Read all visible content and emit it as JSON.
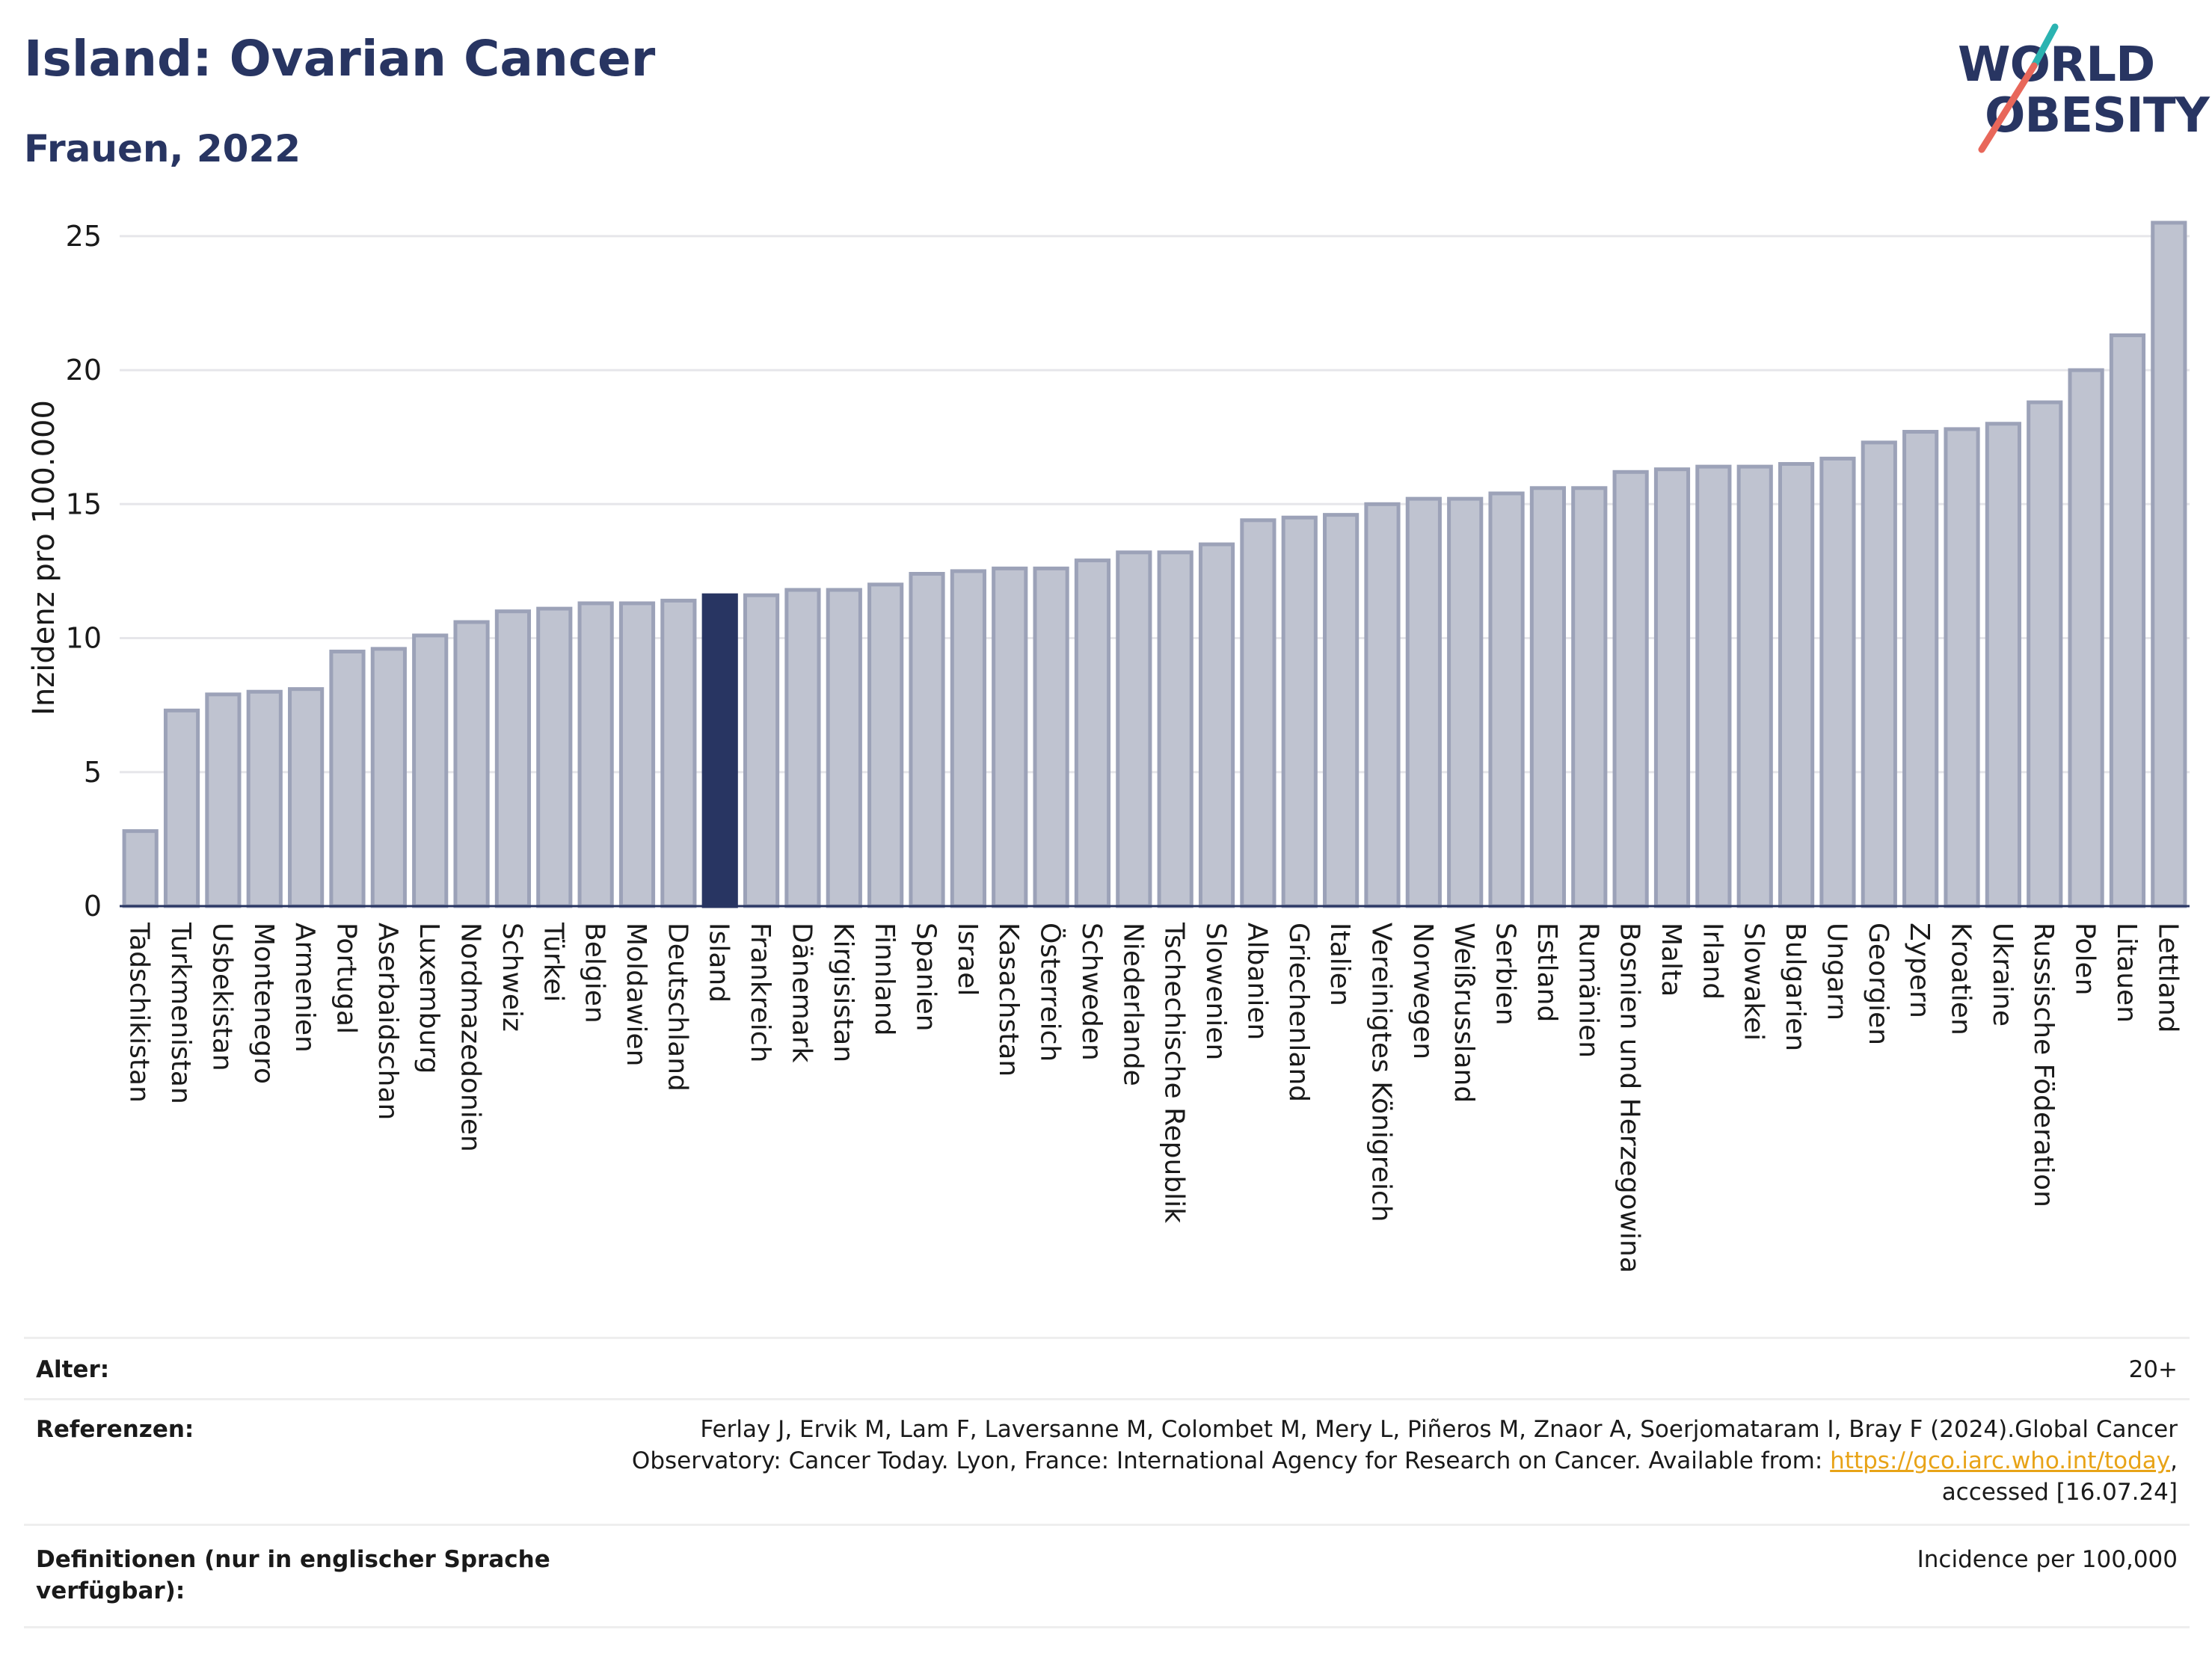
{
  "header": {
    "title": "Island: Ovarian Cancer",
    "subtitle": "Frauen, 2022"
  },
  "logo": {
    "line1": "WORLD",
    "line2": "OBESITY",
    "accent_teal": "#2bb3b1",
    "accent_coral": "#e8675a"
  },
  "colors": {
    "bar_default": "#bfc3d0",
    "bar_border": "#9ca2b8",
    "bar_highlight": "#283562",
    "title": "#283562"
  },
  "chart_data": {
    "type": "bar",
    "ylabel": "Inzidenz pro 100.000",
    "ylim": [
      0,
      26
    ],
    "yticks": [
      0,
      5,
      10,
      15,
      20,
      25
    ],
    "grid": true,
    "highlight": "Island",
    "categories": [
      "Tadschikistan",
      "Turkmenistan",
      "Usbekistan",
      "Montenegro",
      "Armenien",
      "Portugal",
      "Aserbaidschan",
      "Luxemburg",
      "Nordmazedonien",
      "Schweiz",
      "Türkei",
      "Belgien",
      "Moldawien",
      "Deutschland",
      "Island",
      "Frankreich",
      "Dänemark",
      "Kirgisistan",
      "Finnland",
      "Spanien",
      "Israel",
      "Kasachstan",
      "Österreich",
      "Schweden",
      "Niederlande",
      "Tschechische Republik",
      "Slowenien",
      "Albanien",
      "Griechenland",
      "Italien",
      "Vereinigtes Königreich",
      "Norwegen",
      "Weißrussland",
      "Serbien",
      "Estland",
      "Rumänien",
      "Bosnien und Herzegowina",
      "Malta",
      "Irland",
      "Slowakei",
      "Bulgarien",
      "Ungarn",
      "Georgien",
      "Zypern",
      "Kroatien",
      "Ukraine",
      "Russische Föderation",
      "Polen",
      "Litauen",
      "Lettland"
    ],
    "values": [
      2.8,
      7.3,
      7.9,
      8.0,
      8.1,
      9.5,
      9.6,
      10.1,
      10.6,
      11.0,
      11.1,
      11.3,
      11.3,
      11.4,
      11.6,
      11.6,
      11.8,
      11.8,
      12.0,
      12.4,
      12.5,
      12.6,
      12.6,
      12.9,
      13.2,
      13.2,
      13.5,
      14.4,
      14.5,
      14.6,
      15.0,
      15.2,
      15.2,
      15.4,
      15.6,
      15.6,
      16.2,
      16.3,
      16.4,
      16.4,
      16.5,
      16.7,
      17.3,
      17.7,
      17.8,
      18.0,
      18.8,
      20.0,
      21.3,
      25.5
    ]
  },
  "meta": {
    "age_label": "Alter:",
    "age_value": "20+",
    "ref_label": "Referenzen:",
    "ref_line1": "Ferlay J, Ervik M, Lam F, Laversanne M, Colombet M, Mery L, Piñeros M, Znaor A, Soerjomataram I, Bray F (2024).Global Cancer",
    "ref_line2_pre": "Observatory: Cancer Today. Lyon, France: International Agency for Research on Cancer. Available from: ",
    "ref_link": "https://gco.iarc.who.int/today",
    "ref_line2_post": ",",
    "ref_line3": "accessed [16.07.24]",
    "def_label": "Definitionen (nur in englischer Sprache verfügbar):",
    "def_value": "Incidence per 100,000"
  }
}
